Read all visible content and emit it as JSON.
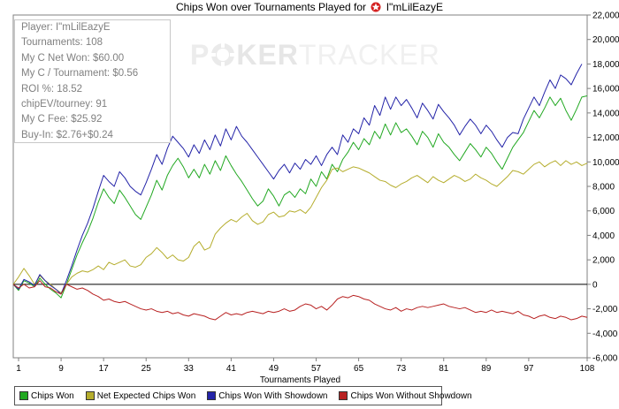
{
  "chart_data": {
    "type": "line",
    "title": "Chips Won over Tournaments Played for",
    "player_name": "I\"mLilEazyE",
    "xlabel": "Tournaments Played",
    "ylabel": "",
    "xlim": [
      0,
      108
    ],
    "ylim": [
      -6000,
      22000
    ],
    "x_ticks": [
      1,
      9,
      17,
      25,
      33,
      41,
      49,
      57,
      65,
      73,
      81,
      89,
      97,
      108
    ],
    "y_ticks": [
      -6000,
      -4000,
      -2000,
      0,
      2000,
      4000,
      6000,
      8000,
      10000,
      12000,
      14000,
      16000,
      18000,
      20000,
      22000
    ],
    "y_axis_side": "right",
    "grid": false,
    "legend_position": "bottom",
    "series": [
      {
        "name": "Chips Won",
        "color": "#22a822",
        "x": [
          0,
          1,
          2,
          3,
          4,
          5,
          6,
          7,
          8,
          9,
          10,
          11,
          12,
          13,
          14,
          15,
          16,
          17,
          18,
          19,
          20,
          21,
          22,
          23,
          24,
          25,
          26,
          27,
          28,
          29,
          30,
          31,
          32,
          33,
          34,
          35,
          36,
          37,
          38,
          39,
          40,
          41,
          42,
          43,
          44,
          45,
          46,
          47,
          48,
          49,
          50,
          51,
          52,
          53,
          54,
          55,
          56,
          57,
          58,
          59,
          60,
          61,
          62,
          63,
          64,
          65,
          66,
          67,
          68,
          69,
          70,
          71,
          72,
          73,
          74,
          75,
          76,
          77,
          78,
          79,
          80,
          81,
          82,
          83,
          84,
          85,
          86,
          87,
          88,
          89,
          90,
          91,
          92,
          93,
          94,
          95,
          96,
          97,
          98,
          99,
          100,
          101,
          102,
          103,
          104,
          105,
          106,
          107,
          108
        ],
        "values": [
          0,
          -500,
          300,
          100,
          -200,
          500,
          0,
          -400,
          -700,
          -1100,
          0,
          1200,
          2400,
          3400,
          4300,
          5400,
          6700,
          7800,
          7100,
          6600,
          7700,
          7100,
          6400,
          5700,
          5300,
          6300,
          7300,
          8500,
          7700,
          8900,
          9700,
          10300,
          9600,
          8700,
          9400,
          8700,
          9800,
          9000,
          10100,
          9300,
          10500,
          9700,
          9000,
          8400,
          7700,
          7000,
          6400,
          6800,
          7800,
          7200,
          6400,
          7300,
          7600,
          7100,
          7800,
          7400,
          8600,
          8000,
          9200,
          8600,
          9800,
          9200,
          10200,
          10800,
          11600,
          11000,
          11900,
          11400,
          12500,
          11900,
          13100,
          12200,
          13200,
          12400,
          12700,
          12100,
          11400,
          12500,
          12000,
          11200,
          12300,
          11600,
          11200,
          10600,
          10100,
          10800,
          11500,
          11000,
          10400,
          11200,
          10700,
          10000,
          9400,
          10300,
          11200,
          11800,
          12400,
          13300,
          14200,
          13600,
          14400,
          15300,
          14600,
          15200,
          14200,
          13400,
          14300,
          15300,
          15400
        ],
        "note_x_is_index": true
      },
      {
        "name": "Net Expected Chips Won",
        "color": "#b5ad2d",
        "values": [
          0,
          600,
          1300,
          700,
          0,
          700,
          300,
          0,
          -400,
          -700,
          0,
          600,
          900,
          1100,
          1000,
          1200,
          1500,
          1200,
          1800,
          1600,
          1800,
          2000,
          1500,
          1400,
          1600,
          2200,
          2500,
          3000,
          2600,
          2100,
          2400,
          2000,
          1900,
          2200,
          3100,
          3500,
          2800,
          3000,
          4100,
          4600,
          5000,
          5300,
          5100,
          5500,
          5800,
          5200,
          4900,
          5100,
          5700,
          5900,
          5500,
          5600,
          6000,
          5900,
          6100,
          5800,
          6300,
          7100,
          7900,
          8500,
          9400,
          9500,
          9200,
          9400,
          9600,
          9500,
          9300,
          9100,
          8800,
          8500,
          8400,
          8100,
          7900,
          8200,
          8400,
          8700,
          8900,
          8600,
          8300,
          8800,
          8500,
          8300,
          8600,
          8900,
          8700,
          8400,
          8600,
          9000,
          8700,
          8500,
          8200,
          8000,
          8400,
          8800,
          9300,
          9200,
          9000,
          9400,
          9800,
          10000,
          9600,
          9900,
          10100,
          9700,
          10100,
          9800,
          10000,
          9700,
          9900
        ]
      },
      {
        "name": "Chips Won With Showdown",
        "color": "#2424a8",
        "values": [
          0,
          -400,
          400,
          200,
          -100,
          800,
          300,
          -100,
          -400,
          -800,
          300,
          1500,
          2800,
          4000,
          5000,
          6200,
          7600,
          8900,
          8400,
          8000,
          9200,
          8700,
          8000,
          7600,
          7300,
          8300,
          9400,
          10600,
          9800,
          11100,
          12100,
          11600,
          11100,
          10400,
          11400,
          10700,
          11800,
          11000,
          12200,
          11300,
          12700,
          11800,
          12900,
          12100,
          11600,
          11000,
          10400,
          9800,
          9200,
          8600,
          9300,
          9800,
          9100,
          9900,
          9400,
          10200,
          9800,
          10500,
          9700,
          10600,
          11200,
          10600,
          12200,
          11600,
          12700,
          12300,
          13600,
          13000,
          14600,
          13800,
          15300,
          14300,
          15300,
          14600,
          15100,
          14400,
          13600,
          14800,
          14200,
          13500,
          14700,
          14100,
          13600,
          13000,
          12200,
          12900,
          13500,
          13000,
          12300,
          13000,
          12500,
          11800,
          11200,
          12000,
          12400,
          12300,
          13500,
          14400,
          15300,
          14600,
          15700,
          16700,
          16000,
          17100,
          16800,
          16300,
          17200,
          18000
        ]
      },
      {
        "name": "Chips Won Without Showdown",
        "color": "#b82222",
        "values": [
          0,
          -300,
          0,
          -300,
          -200,
          300,
          -200,
          -300,
          -600,
          -800,
          0,
          -200,
          -400,
          -300,
          -500,
          -800,
          -1000,
          -1300,
          -1200,
          -1400,
          -1500,
          -1400,
          -1600,
          -1800,
          -2000,
          -2100,
          -2000,
          -2200,
          -2300,
          -2200,
          -2400,
          -2300,
          -2500,
          -2600,
          -2400,
          -2500,
          -2600,
          -2800,
          -2900,
          -2600,
          -2300,
          -2500,
          -2400,
          -2500,
          -2300,
          -2200,
          -2300,
          -2400,
          -2200,
          -2300,
          -2200,
          -2000,
          -2200,
          -2100,
          -1800,
          -1600,
          -1700,
          -2000,
          -1800,
          -2100,
          -1700,
          -1200,
          -1000,
          -1100,
          -900,
          -1000,
          -1200,
          -1300,
          -1600,
          -1800,
          -2000,
          -2100,
          -1900,
          -2200,
          -2000,
          -2100,
          -1900,
          -1800,
          -1900,
          -1800,
          -1700,
          -1600,
          -1800,
          -1900,
          -2000,
          -1900,
          -2100,
          -2300,
          -2200,
          -2300,
          -2100,
          -2300,
          -2200,
          -2300,
          -2400,
          -2200,
          -2500,
          -2600,
          -2800,
          -2600,
          -2500,
          -2700,
          -2800,
          -2600,
          -2700,
          -2900,
          -2800,
          -2600,
          -2700
        ]
      }
    ]
  },
  "info_box": {
    "player": "Player: I\"mLilEazyE",
    "tournaments": "Tournaments: 108",
    "net_won": "My C Net Won: $60.00",
    "per_tournament": "My C / Tournament: $0.56",
    "roi": "ROI %: 18.52",
    "chipev": "chipEV/tourney: 91",
    "fee": "My C Fee: $25.92",
    "buyin": "Buy-In: $2.76+$0.24"
  },
  "watermark": {
    "part1": "P",
    "part2": "KER",
    "part3": "TRACKER"
  },
  "legend": {
    "items": [
      {
        "label": "Chips Won",
        "color": "#22a822"
      },
      {
        "label": "Net Expected Chips Won",
        "color": "#b5ad2d"
      },
      {
        "label": "Chips Won With Showdown",
        "color": "#2424a8"
      },
      {
        "label": "Chips Won Without Showdown",
        "color": "#b82222"
      }
    ]
  },
  "icons": {
    "title_logo": "pokerstars-logo-icon",
    "watermark_logo": "poker-chip-icon"
  }
}
